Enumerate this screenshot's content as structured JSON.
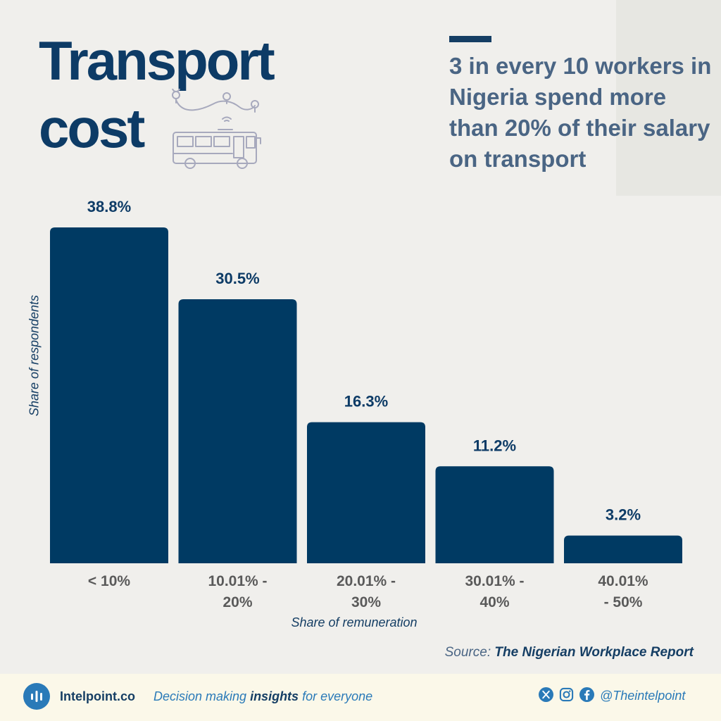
{
  "title_line1": "Transport",
  "title_line2": "cost",
  "headline": "3 in every 10 workers in Nigeria spend more than 20% of their salary on transport",
  "source": {
    "prefix": "Source:",
    "name": "The Nigerian Workplace Report"
  },
  "footer": {
    "brand": "Intelpoint.co",
    "tagline_pre": "Decision making ",
    "tagline_bold": "insights",
    "tagline_post": " for everyone",
    "handle": "@Theintelpoint",
    "icons": [
      "x-icon",
      "instagram-icon",
      "facebook-icon"
    ]
  },
  "colors": {
    "bar": "#003a63",
    "title": "#0d3b66",
    "headline": "#4a6584",
    "accent": "#2a7ab8"
  },
  "chart_data": {
    "type": "bar",
    "categories": [
      "< 10%",
      "10.01% - 20%",
      "20.01% - 30%",
      "30.01% - 40%",
      "40.01% - 50%"
    ],
    "category_lines": [
      [
        "< 10%"
      ],
      [
        "10.01% -",
        "20%"
      ],
      [
        "20.01% -",
        "30%"
      ],
      [
        "30.01% -",
        "40%"
      ],
      [
        "40.01%",
        "- 50%"
      ]
    ],
    "values": [
      38.8,
      30.5,
      16.3,
      11.2,
      3.2
    ],
    "data_labels": [
      "38.8%",
      "30.5%",
      "16.3%",
      "11.2%",
      "3.2%"
    ],
    "xlabel": "Share of remuneration",
    "ylabel": "Share of respondents",
    "ylim": [
      0,
      38.8
    ],
    "grid": false,
    "legend": "none"
  }
}
